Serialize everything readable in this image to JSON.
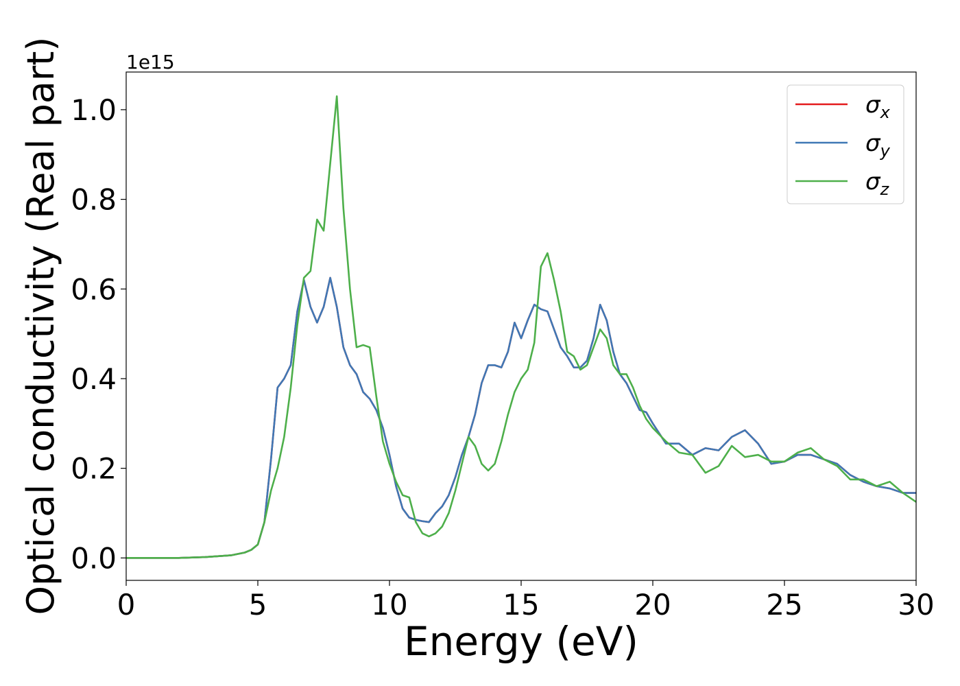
{
  "chart_data": {
    "type": "line",
    "xlabel": "Energy (eV)",
    "ylabel": "Optical conductivity (Real part)",
    "y_offset_label": "1e15",
    "xlim": [
      0,
      30
    ],
    "ylim": [
      -0.05,
      1.084
    ],
    "xticks": [
      0,
      5,
      10,
      15,
      20,
      25,
      30
    ],
    "yticks": [
      {
        "value": 0,
        "label": "0.0"
      },
      0.2,
      0.4,
      0.6,
      0.8,
      {
        "value": 1,
        "label": "1.0"
      }
    ],
    "legend": "upper right",
    "x": [
      0,
      1,
      2,
      3,
      4,
      4.5,
      4.75,
      5,
      5.25,
      5.5,
      5.75,
      6,
      6.25,
      6.5,
      6.75,
      7,
      7.25,
      7.5,
      7.75,
      8,
      8.25,
      8.5,
      8.75,
      9,
      9.25,
      9.5,
      9.75,
      10,
      10.25,
      10.5,
      10.75,
      11,
      11.25,
      11.5,
      11.75,
      12,
      12.25,
      12.5,
      12.75,
      13,
      13.25,
      13.5,
      13.75,
      14,
      14.25,
      14.5,
      14.75,
      15,
      15.25,
      15.5,
      15.75,
      16,
      16.25,
      16.5,
      16.75,
      17,
      17.25,
      17.5,
      17.75,
      18,
      18.25,
      18.5,
      18.75,
      19,
      19.25,
      19.5,
      19.75,
      20,
      20.5,
      21,
      21.5,
      22,
      22.5,
      23,
      23.5,
      24,
      24.5,
      25,
      25.5,
      26,
      26.5,
      27,
      27.5,
      28,
      28.5,
      29,
      29.5,
      30
    ],
    "series": [
      {
        "name": "σx",
        "color": "#e41a1c",
        "values": [
          0,
          0,
          0,
          0.002,
          0.006,
          0.012,
          0.018,
          0.03,
          0.08,
          0.22,
          0.38,
          0.4,
          0.43,
          0.55,
          0.62,
          0.56,
          0.525,
          0.56,
          0.625,
          0.56,
          0.47,
          0.43,
          0.41,
          0.37,
          0.355,
          0.33,
          0.29,
          0.23,
          0.16,
          0.11,
          0.09,
          0.085,
          0.082,
          0.08,
          0.1,
          0.115,
          0.14,
          0.18,
          0.23,
          0.27,
          0.32,
          0.39,
          0.43,
          0.43,
          0.425,
          0.46,
          0.525,
          0.49,
          0.53,
          0.565,
          0.555,
          0.55,
          0.51,
          0.47,
          0.45,
          0.425,
          0.425,
          0.44,
          0.49,
          0.565,
          0.53,
          0.46,
          0.41,
          0.39,
          0.36,
          0.33,
          0.325,
          0.3,
          0.255,
          0.255,
          0.23,
          0.245,
          0.24,
          0.27,
          0.285,
          0.255,
          0.21,
          0.215,
          0.23,
          0.23,
          0.22,
          0.21,
          0.185,
          0.17,
          0.16,
          0.155,
          0.145,
          0.145
        ]
      },
      {
        "name": "σy",
        "color": "#3f78b5",
        "values": [
          0,
          0,
          0,
          0.002,
          0.006,
          0.012,
          0.018,
          0.03,
          0.08,
          0.22,
          0.38,
          0.4,
          0.43,
          0.55,
          0.62,
          0.56,
          0.525,
          0.56,
          0.625,
          0.56,
          0.47,
          0.43,
          0.41,
          0.37,
          0.355,
          0.33,
          0.29,
          0.23,
          0.16,
          0.11,
          0.09,
          0.085,
          0.082,
          0.08,
          0.1,
          0.115,
          0.14,
          0.18,
          0.23,
          0.27,
          0.32,
          0.39,
          0.43,
          0.43,
          0.425,
          0.46,
          0.525,
          0.49,
          0.53,
          0.565,
          0.555,
          0.55,
          0.51,
          0.47,
          0.45,
          0.425,
          0.425,
          0.44,
          0.49,
          0.565,
          0.53,
          0.46,
          0.41,
          0.39,
          0.36,
          0.33,
          0.325,
          0.3,
          0.255,
          0.255,
          0.23,
          0.245,
          0.24,
          0.27,
          0.285,
          0.255,
          0.21,
          0.215,
          0.23,
          0.23,
          0.22,
          0.21,
          0.185,
          0.17,
          0.16,
          0.155,
          0.145,
          0.145
        ]
      },
      {
        "name": "σz",
        "color": "#4daf4a",
        "values": [
          0,
          0,
          0,
          0.002,
          0.006,
          0.012,
          0.018,
          0.03,
          0.08,
          0.15,
          0.2,
          0.27,
          0.38,
          0.52,
          0.625,
          0.64,
          0.755,
          0.73,
          0.88,
          1.03,
          0.78,
          0.6,
          0.47,
          0.475,
          0.47,
          0.36,
          0.26,
          0.21,
          0.17,
          0.14,
          0.135,
          0.08,
          0.055,
          0.048,
          0.055,
          0.07,
          0.1,
          0.15,
          0.21,
          0.27,
          0.25,
          0.21,
          0.195,
          0.21,
          0.26,
          0.32,
          0.37,
          0.4,
          0.42,
          0.48,
          0.65,
          0.68,
          0.62,
          0.55,
          0.46,
          0.45,
          0.42,
          0.43,
          0.47,
          0.51,
          0.49,
          0.43,
          0.41,
          0.41,
          0.38,
          0.34,
          0.31,
          0.29,
          0.26,
          0.235,
          0.23,
          0.19,
          0.205,
          0.25,
          0.225,
          0.23,
          0.215,
          0.215,
          0.235,
          0.245,
          0.22,
          0.205,
          0.175,
          0.175,
          0.16,
          0.17,
          0.145,
          0.125
        ]
      }
    ]
  }
}
